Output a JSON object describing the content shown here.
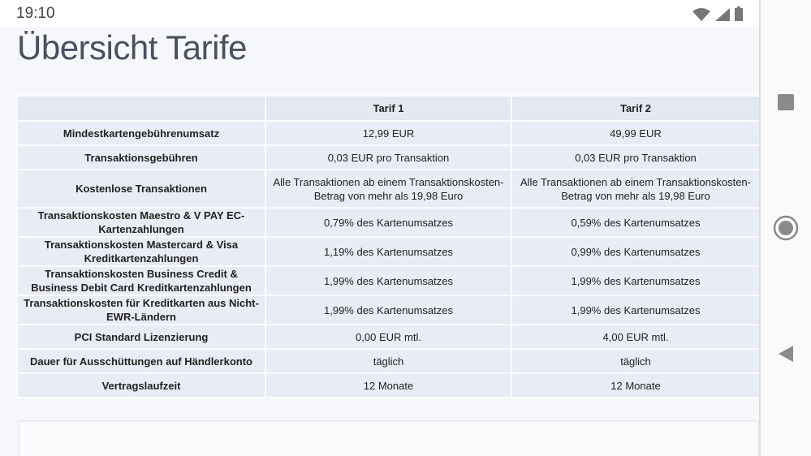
{
  "status_bar": {
    "time": "19:10",
    "icons": [
      "wifi-icon",
      "signal-icon",
      "battery-icon"
    ]
  },
  "page": {
    "title": "Übersicht Tarife"
  },
  "table": {
    "headers": [
      "",
      "Tarif 1",
      "Tarif 2"
    ],
    "rows": [
      {
        "label": "Mindestkartengebührenumsatz",
        "tarif1": "12,99 EUR",
        "tarif2": "49,99 EUR"
      },
      {
        "label": "Transaktionsgebühren",
        "tarif1": "0,03 EUR pro Transaktion",
        "tarif2": "0,03 EUR pro Transaktion"
      },
      {
        "label": "Kostenlose Transaktionen",
        "tarif1": "Alle Transaktionen ab einem Transaktionskosten-Betrag von mehr als 19,98 Euro",
        "tarif2": "Alle Transaktionen ab einem Transaktionskosten-Betrag von mehr als 19,98 Euro"
      },
      {
        "label": "Transaktionskosten Maestro & V PAY EC-Kartenzahlungen",
        "tarif1": "0,79% des Kartenumsatzes",
        "tarif2": "0,59% des Kartenumsatzes"
      },
      {
        "label": "Transaktionskosten Mastercard & Visa Kreditkartenzahlungen",
        "tarif1": "1,19% des Kartenumsatzes",
        "tarif2": "0,99% des Kartenumsatzes"
      },
      {
        "label": "Transaktionskosten Business Credit & Business Debit Card Kreditkartenzahlungen",
        "tarif1": "1,99% des Kartenumsatzes",
        "tarif2": "1,99% des Kartenumsatzes"
      },
      {
        "label": "Transaktionskosten für Kreditkarten aus Nicht-EWR-Ländern",
        "tarif1": "1,99% des Kartenumsatzes",
        "tarif2": "1,99% des Kartenumsatzes"
      },
      {
        "label": "PCI Standard Lizenzierung",
        "tarif1": "0,00 EUR mtl.",
        "tarif2": "4,00 EUR mtl."
      },
      {
        "label": "Dauer für Ausschüttungen auf Händlerkonto",
        "tarif1": "täglich",
        "tarif2": "täglich"
      },
      {
        "label": "Vertragslaufzeit",
        "tarif1": "12 Monate",
        "tarif2": "12 Monate"
      }
    ]
  },
  "nav_bar": {
    "buttons": [
      "recents-button",
      "home-button",
      "back-button"
    ]
  }
}
